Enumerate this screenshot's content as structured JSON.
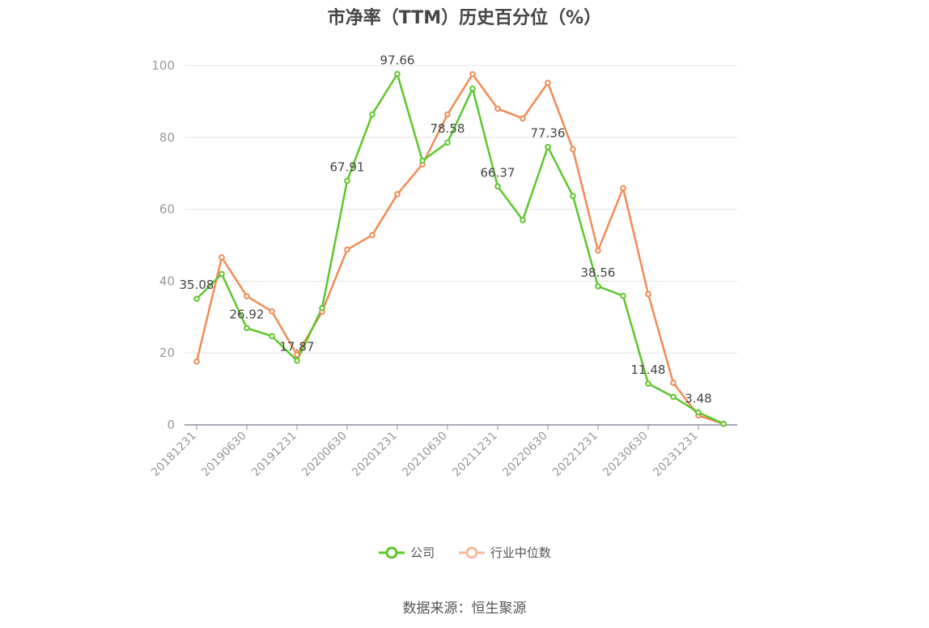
{
  "chart_data": {
    "type": "line",
    "title": "市净率（TTM）历史百分位（%）",
    "xlabel": "",
    "ylabel": "",
    "ylim": [
      0,
      100
    ],
    "yticks": [
      0,
      20,
      40,
      60,
      80,
      100
    ],
    "grid": true,
    "legend_position": "bottom",
    "categories": [
      "20181231",
      "20190331",
      "20190630",
      "20190930",
      "20191231",
      "20200331",
      "20200630",
      "20200930",
      "20201231",
      "20210331",
      "20210630",
      "20210930",
      "20211231",
      "20220331",
      "20220630",
      "20220930",
      "20221231",
      "20230331",
      "20230630",
      "20230930",
      "20231231",
      "20240331"
    ],
    "xtick_labels": [
      "20181231",
      "20190630",
      "20191231",
      "20200630",
      "20201231",
      "20210630",
      "20211231",
      "20220630",
      "20221231",
      "20230630",
      "20231231"
    ],
    "series": [
      {
        "name": "公司",
        "color": "#5cc72c",
        "values": [
          35.08,
          42.0,
          26.92,
          24.7,
          17.87,
          32.5,
          67.91,
          86.4,
          97.66,
          73.5,
          78.58,
          93.6,
          66.37,
          57.0,
          77.36,
          63.7,
          38.56,
          35.9,
          11.48,
          7.8,
          3.48,
          0.3
        ],
        "labeled_indices": [
          0,
          2,
          4,
          6,
          8,
          10,
          12,
          14,
          16,
          18,
          20
        ]
      },
      {
        "name": "行业中位数",
        "color": "#f28b54",
        "values": [
          17.6,
          46.6,
          35.8,
          31.6,
          19.5,
          31.5,
          48.8,
          52.8,
          64.2,
          72.5,
          86.4,
          97.6,
          88.0,
          85.3,
          95.2,
          76.7,
          48.5,
          65.9,
          36.4,
          11.7,
          2.6,
          0.3
        ]
      }
    ]
  },
  "legend": {
    "company": "公司",
    "industry": "行业中位数"
  },
  "source": "数据来源：恒生聚源"
}
